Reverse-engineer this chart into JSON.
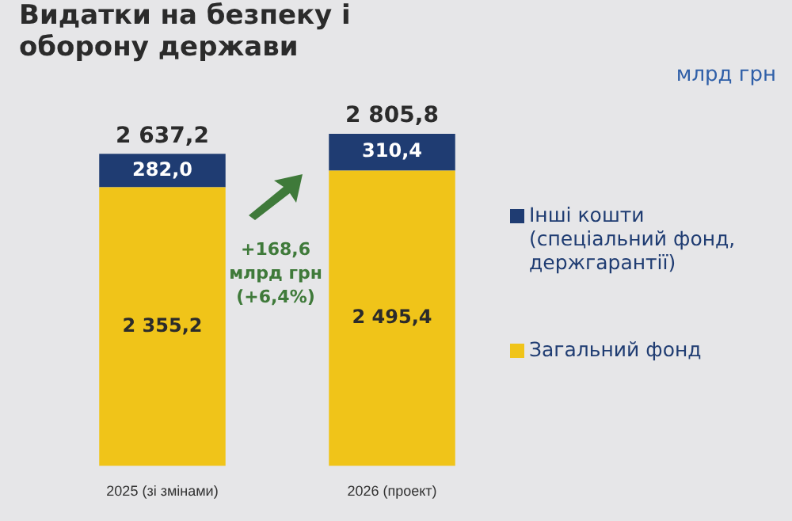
{
  "chart_data": {
    "type": "bar",
    "title": "Видатки на безпеку і оборону держави",
    "stacked": true,
    "legend": "right",
    "categories": [
      "2025 (зі змінами)",
      "2026 (проект)"
    ],
    "series": [
      {
        "name": "Загальний фонд",
        "color": "#f0c419",
        "values": [
          2355.2,
          2495.4
        ],
        "value_labels": [
          "2 355,2",
          "2 495,4"
        ]
      },
      {
        "name": "Інші кошти (спеціальний фонд, держгарантії)",
        "color": "#1f3c72",
        "values": [
          282.0,
          310.4
        ],
        "value_labels": [
          "282,0",
          "310,4"
        ]
      }
    ],
    "totals": [
      "2 637,2",
      "2 805,8"
    ],
    "annotations": [
      "+168,6 млрд грн (+6,4%)",
      "млрд грн"
    ]
  }
}
